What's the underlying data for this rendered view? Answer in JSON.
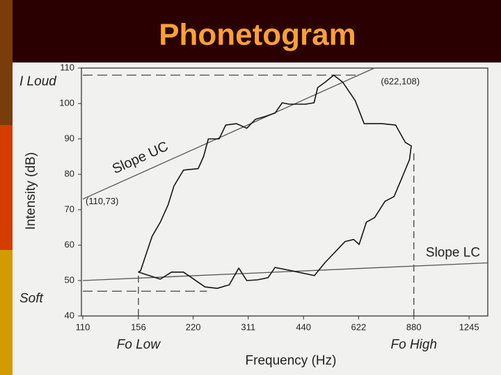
{
  "chart_data": {
    "type": "line",
    "title": "Phonetogram",
    "xlabel": "Frequency (Hz)",
    "ylabel": "Intensity (dB)",
    "x": [
      156,
      179,
      192,
      207,
      237,
      256,
      276,
      293,
      308,
      329,
      352,
      368,
      411,
      471,
      504,
      571,
      603,
      624,
      653,
      688,
      734,
      777,
      821,
      856,
      866,
      834,
      785,
      720,
      644,
      609,
      563,
      532,
      504,
      481,
      470,
      446,
      402,
      385,
      368,
      345,
      325,
      308,
      289,
      270,
      259,
      242,
      235,
      227,
      207,
      195,
      188,
      179,
      170,
      158
    ],
    "values": [
      52.4,
      50.4,
      52.4,
      52.4,
      48.2,
      47.8,
      48.8,
      53.5,
      50,
      50.2,
      50.8,
      53.7,
      52.7,
      51.4,
      55.1,
      61,
      61.6,
      60.2,
      66.5,
      67.8,
      72.4,
      73.7,
      79.6,
      84.1,
      88,
      89,
      93.9,
      94.3,
      94.3,
      100.8,
      106,
      108,
      106,
      104.5,
      100.2,
      99.8,
      99.8,
      100.2,
      97.3,
      96.3,
      95.5,
      93,
      94.3,
      93.9,
      90,
      90,
      85.1,
      81.6,
      81.2,
      76.7,
      71.4,
      66.5,
      62.5,
      52.7
    ],
    "color": "#151515",
    "xscale": "log",
    "xlim": [
      110,
      1400
    ],
    "ylim": [
      40,
      110
    ],
    "xticks": [
      110,
      156,
      220,
      311,
      440,
      622,
      880,
      1245
    ],
    "yticks": [
      40,
      50,
      60,
      70,
      80,
      90,
      100,
      110
    ],
    "point_labels": [
      {
        "text": "(622,108)",
        "x": 622,
        "y": 108
      },
      {
        "text": "(110,73)",
        "x": 110,
        "y": 73
      }
    ],
    "slope_lines": [
      {
        "label": "Slope UC"
      },
      {
        "label": "Slope LC",
        "x": [
          110,
          1400
        ],
        "y": [
          50,
          55
        ]
      }
    ],
    "limits": [
      {
        "label": "I Loud",
        "axis": "y",
        "value": 108,
        "to": 622
      },
      {
        "label": "Soft",
        "axis": "y",
        "value": 47,
        "to": 240
      },
      {
        "label": "Fo Low",
        "axis": "x",
        "value": 156,
        "to": 52
      },
      {
        "label": "Fo High",
        "axis": "x",
        "value": 880,
        "to": 86
      }
    ]
  }
}
